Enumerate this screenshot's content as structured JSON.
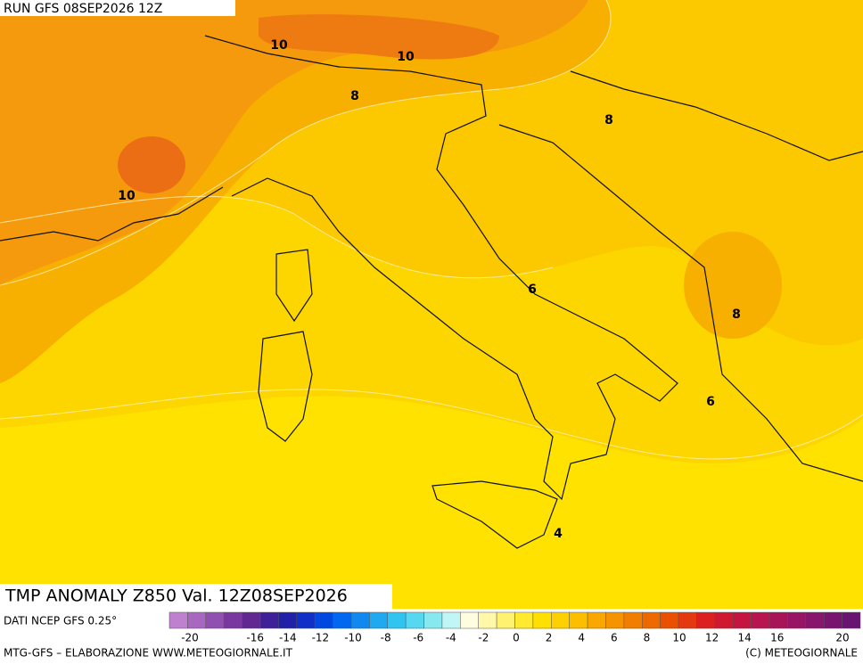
{
  "header": {
    "run": "RUN GFS 08SEP2026 12Z"
  },
  "contour_labels": [
    "10",
    "10",
    "8",
    "10",
    "8",
    "6",
    "8",
    "6",
    "4"
  ],
  "map_title": "TMP ANOMALY Z850 Val. 12Z08SEP2026",
  "source": "DATI NCEP GFS 0.25°",
  "colorbar": {
    "colors": [
      "#c080d0",
      "#a868c0",
      "#9050b0",
      "#7838a0",
      "#602890",
      "#402098",
      "#2020a8",
      "#1030c8",
      "#0048e0",
      "#0068f0",
      "#1088f0",
      "#20a8f0",
      "#30c4f0",
      "#58d8f0",
      "#88e8f0",
      "#c0f6f6",
      "#fffde0",
      "#fff8a8",
      "#fff270",
      "#ffea30",
      "#ffe000",
      "#ffd000",
      "#fdbe00",
      "#faa800",
      "#f69400",
      "#f27e00",
      "#ee6800",
      "#ea5000",
      "#e43810",
      "#dc2020",
      "#d01830",
      "#c41440",
      "#b81450",
      "#a81458",
      "#981464",
      "#88146c",
      "#781470",
      "#681470"
    ],
    "labels": [
      -20,
      -16,
      -14,
      -12,
      -10,
      -8,
      -6,
      -4,
      -2,
      0,
      2,
      4,
      6,
      8,
      10,
      12,
      14,
      16,
      20
    ],
    "range": [
      -20,
      20
    ]
  },
  "footer": {
    "left": "MTG-GFS – ELABORAZIONE WWW.METEOGIORNALE.IT",
    "right": "(C) METEOGIORNALE"
  }
}
